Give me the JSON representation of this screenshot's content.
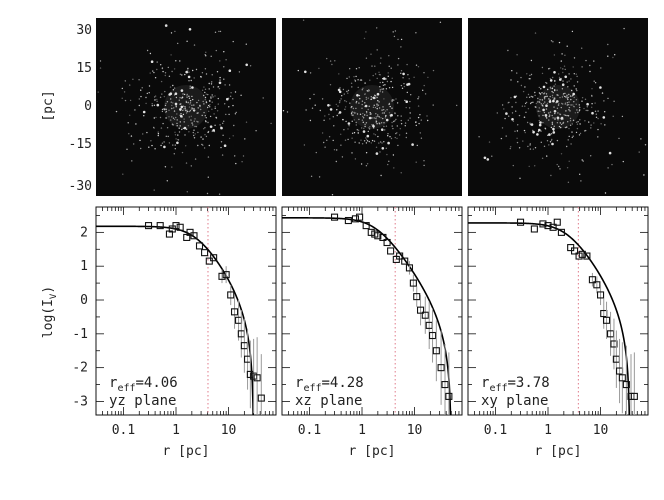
{
  "top_row": {
    "ylabel": "[pc]",
    "yticks": [
      "30",
      "15",
      "0",
      "-15",
      "-30"
    ],
    "panel_background": "#0a0a0a",
    "star_color": "#e8e8e8"
  },
  "chart_data": {
    "type": "scatter",
    "xlabel": "r [pc]",
    "ylabel": "log(I_V)",
    "xscale": "log",
    "xlim": [
      0.03,
      80
    ],
    "ylim": [
      -3.4,
      2.75
    ],
    "xticks": [
      0.1,
      1,
      10
    ],
    "xtick_labels": [
      "0.1",
      "1",
      "10"
    ],
    "yticks": [
      2,
      1,
      0,
      -1,
      -2,
      -3
    ],
    "ytick_labels": [
      "2",
      "1",
      "0",
      "-1",
      "-2",
      "-3"
    ],
    "panels": [
      {
        "plane_label": "yz plane",
        "r_eff_prefix": "r",
        "r_eff_sub": "eff",
        "r_eff_value": "=4.06",
        "r_eff": 4.06,
        "model_I0": 2.18,
        "model_rc": 2.3,
        "model_rt": 30,
        "points": [
          {
            "r": 0.3,
            "y": 2.2,
            "err": 0.05
          },
          {
            "r": 0.5,
            "y": 2.2,
            "err": 0.05
          },
          {
            "r": 0.75,
            "y": 1.95,
            "err": 0.05
          },
          {
            "r": 0.85,
            "y": 2.1,
            "err": 0.05
          },
          {
            "r": 1.0,
            "y": 2.2,
            "err": 0.05
          },
          {
            "r": 1.2,
            "y": 2.15,
            "err": 0.05
          },
          {
            "r": 1.6,
            "y": 1.85,
            "err": 0.05
          },
          {
            "r": 1.85,
            "y": 2.0,
            "err": 0.05
          },
          {
            "r": 2.2,
            "y": 1.9,
            "err": 0.05
          },
          {
            "r": 2.8,
            "y": 1.6,
            "err": 0.06
          },
          {
            "r": 3.5,
            "y": 1.4,
            "err": 0.08
          },
          {
            "r": 4.3,
            "y": 1.15,
            "err": 0.1
          },
          {
            "r": 5.2,
            "y": 1.25,
            "err": 0.12
          },
          {
            "r": 7.5,
            "y": 0.7,
            "err": 0.2
          },
          {
            "r": 9,
            "y": 0.75,
            "err": 0.25
          },
          {
            "r": 11,
            "y": 0.15,
            "err": 0.3
          },
          {
            "r": 13,
            "y": -0.35,
            "err": 0.5
          },
          {
            "r": 15.5,
            "y": -0.6,
            "err": 0.6
          },
          {
            "r": 17.5,
            "y": -1.0,
            "err": 0.7
          },
          {
            "r": 20,
            "y": -1.35,
            "err": 0.8
          },
          {
            "r": 23,
            "y": -1.75,
            "err": 0.9
          },
          {
            "r": 26,
            "y": -2.2,
            "err": 1.0
          },
          {
            "r": 30,
            "y": -2.25,
            "err": 1.1
          },
          {
            "r": 35,
            "y": -2.3,
            "err": 1.2
          },
          {
            "r": 42,
            "y": -2.9,
            "err": 1.3
          }
        ]
      },
      {
        "plane_label": "xz plane",
        "r_eff_prefix": "r",
        "r_eff_sub": "eff",
        "r_eff_value": "=4.28",
        "r_eff": 4.28,
        "model_I0": 2.43,
        "model_rc": 1.8,
        "model_rt": 50,
        "points": [
          {
            "r": 0.3,
            "y": 2.45,
            "err": 0.05
          },
          {
            "r": 0.55,
            "y": 2.35,
            "err": 0.05
          },
          {
            "r": 0.75,
            "y": 2.4,
            "err": 0.05
          },
          {
            "r": 0.9,
            "y": 2.45,
            "err": 0.05
          },
          {
            "r": 1.2,
            "y": 2.2,
            "err": 0.05
          },
          {
            "r": 1.5,
            "y": 2.0,
            "err": 0.05
          },
          {
            "r": 1.75,
            "y": 1.95,
            "err": 0.05
          },
          {
            "r": 2.0,
            "y": 1.9,
            "err": 0.05
          },
          {
            "r": 2.5,
            "y": 1.85,
            "err": 0.06
          },
          {
            "r": 3.0,
            "y": 1.7,
            "err": 0.07
          },
          {
            "r": 3.5,
            "y": 1.45,
            "err": 0.08
          },
          {
            "r": 4.5,
            "y": 1.2,
            "err": 0.1
          },
          {
            "r": 5.2,
            "y": 1.3,
            "err": 0.12
          },
          {
            "r": 6.5,
            "y": 1.15,
            "err": 0.15
          },
          {
            "r": 8,
            "y": 0.95,
            "err": 0.2
          },
          {
            "r": 9.5,
            "y": 0.5,
            "err": 0.25
          },
          {
            "r": 11,
            "y": 0.1,
            "err": 0.3
          },
          {
            "r": 13,
            "y": -0.3,
            "err": 0.45
          },
          {
            "r": 16,
            "y": -0.45,
            "err": 0.55
          },
          {
            "r": 19,
            "y": -0.75,
            "err": 0.7
          },
          {
            "r": 22,
            "y": -1.05,
            "err": 0.8
          },
          {
            "r": 26,
            "y": -1.5,
            "err": 0.9
          },
          {
            "r": 32,
            "y": -2.0,
            "err": 1.1
          },
          {
            "r": 38,
            "y": -2.5,
            "err": 1.2
          },
          {
            "r": 45,
            "y": -2.85,
            "err": 1.3
          }
        ]
      },
      {
        "plane_label": "xy plane",
        "r_eff_prefix": "r",
        "r_eff_sub": "eff",
        "r_eff_value": "=3.78",
        "r_eff": 3.78,
        "model_I0": 2.28,
        "model_rc": 2.2,
        "model_rt": 36,
        "points": [
          {
            "r": 0.3,
            "y": 2.3,
            "err": 0.05
          },
          {
            "r": 0.55,
            "y": 2.1,
            "err": 0.05
          },
          {
            "r": 0.8,
            "y": 2.25,
            "err": 0.05
          },
          {
            "r": 1.0,
            "y": 2.2,
            "err": 0.05
          },
          {
            "r": 1.25,
            "y": 2.15,
            "err": 0.05
          },
          {
            "r": 1.5,
            "y": 2.3,
            "err": 0.05
          },
          {
            "r": 1.8,
            "y": 2.0,
            "err": 0.05
          },
          {
            "r": 2.7,
            "y": 1.55,
            "err": 0.06
          },
          {
            "r": 3.2,
            "y": 1.45,
            "err": 0.07
          },
          {
            "r": 3.9,
            "y": 1.3,
            "err": 0.08
          },
          {
            "r": 4.5,
            "y": 1.35,
            "err": 0.1
          },
          {
            "r": 5.5,
            "y": 1.3,
            "err": 0.12
          },
          {
            "r": 7,
            "y": 0.6,
            "err": 0.2
          },
          {
            "r": 8.5,
            "y": 0.45,
            "err": 0.25
          },
          {
            "r": 10,
            "y": 0.15,
            "err": 0.3
          },
          {
            "r": 11.5,
            "y": -0.4,
            "err": 0.45
          },
          {
            "r": 13,
            "y": -0.6,
            "err": 0.55
          },
          {
            "r": 15.5,
            "y": -1.0,
            "err": 0.65
          },
          {
            "r": 18,
            "y": -1.3,
            "err": 0.75
          },
          {
            "r": 20,
            "y": -1.75,
            "err": 0.85
          },
          {
            "r": 23,
            "y": -2.1,
            "err": 0.95
          },
          {
            "r": 26,
            "y": -2.3,
            "err": 1.05
          },
          {
            "r": 31,
            "y": -2.5,
            "err": 1.15
          },
          {
            "r": 38,
            "y": -2.85,
            "err": 1.25
          },
          {
            "r": 44,
            "y": -2.85,
            "err": 1.3
          }
        ]
      }
    ]
  }
}
